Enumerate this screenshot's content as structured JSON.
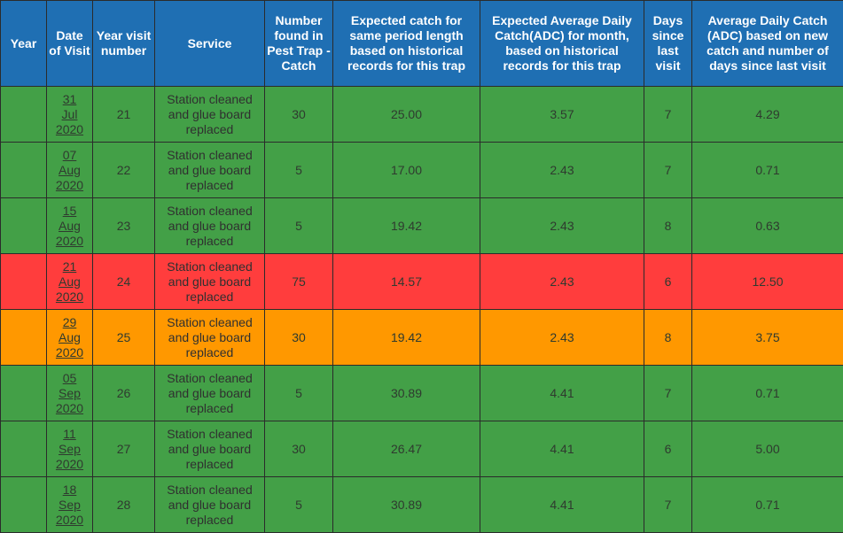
{
  "table": {
    "headers": [
      "Year",
      "Date of Visit",
      "Year visit number",
      "Service",
      "Number found in Pest Trap - Catch",
      "Expected catch for same period length based on historical records for this trap",
      "Expected Average Daily Catch(ADC) for month, based on historical records for this trap",
      "Days since last visit",
      "Average Daily Catch (ADC) based on new catch and number of days since last visit"
    ],
    "rows": [
      {
        "status": "green",
        "year": "",
        "date": [
          "31",
          "Jul",
          "2020"
        ],
        "visit": "21",
        "service": "Station cleaned and glue board replaced",
        "catch": "30",
        "expected": "25.00",
        "exp_adc": "3.57",
        "days": "7",
        "adc": "4.29"
      },
      {
        "status": "green",
        "year": "",
        "date": [
          "07",
          "Aug",
          "2020"
        ],
        "visit": "22",
        "service": "Station cleaned and glue board replaced",
        "catch": "5",
        "expected": "17.00",
        "exp_adc": "2.43",
        "days": "7",
        "adc": "0.71"
      },
      {
        "status": "green",
        "year": "",
        "date": [
          "15",
          "Aug",
          "2020"
        ],
        "visit": "23",
        "service": "Station cleaned and glue board replaced",
        "catch": "5",
        "expected": "19.42",
        "exp_adc": "2.43",
        "days": "8",
        "adc": "0.63"
      },
      {
        "status": "red",
        "year": "",
        "date": [
          "21",
          "Aug",
          "2020"
        ],
        "visit": "24",
        "service": "Station cleaned and glue board replaced",
        "catch": "75",
        "expected": "14.57",
        "exp_adc": "2.43",
        "days": "6",
        "adc": "12.50"
      },
      {
        "status": "orange",
        "year": "",
        "date": [
          "29",
          "Aug",
          "2020"
        ],
        "visit": "25",
        "service": "Station cleaned and glue board replaced",
        "catch": "30",
        "expected": "19.42",
        "exp_adc": "2.43",
        "days": "8",
        "adc": "3.75"
      },
      {
        "status": "green",
        "year": "",
        "date": [
          "05",
          "Sep",
          "2020"
        ],
        "visit": "26",
        "service": "Station cleaned and glue board replaced",
        "catch": "5",
        "expected": "30.89",
        "exp_adc": "4.41",
        "days": "7",
        "adc": "0.71"
      },
      {
        "status": "green",
        "year": "",
        "date": [
          "11",
          "Sep",
          "2020"
        ],
        "visit": "27",
        "service": "Station cleaned and glue board replaced",
        "catch": "30",
        "expected": "26.47",
        "exp_adc": "4.41",
        "days": "6",
        "adc": "5.00"
      },
      {
        "status": "green",
        "year": "",
        "date": [
          "18",
          "Sep",
          "2020"
        ],
        "visit": "28",
        "service": "Station cleaned and glue board replaced",
        "catch": "5",
        "expected": "30.89",
        "exp_adc": "4.41",
        "days": "7",
        "adc": "0.71"
      }
    ]
  },
  "colors": {
    "header_bg": "#1f6fb3",
    "green": "#43a047",
    "red": "#ff3d3d",
    "orange": "#ff9800",
    "border": "#2b2b2b"
  }
}
